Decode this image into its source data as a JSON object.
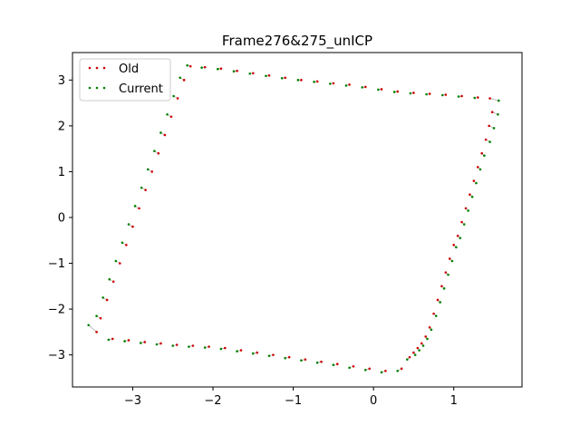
{
  "chart_data": {
    "type": "scatter",
    "title": "Frame276&275_unICP",
    "xlabel": "",
    "ylabel": "",
    "xlim": [
      -3.75,
      1.85
    ],
    "ylim": [
      -3.7,
      3.6
    ],
    "xticks": [
      -3,
      -2,
      -1,
      0,
      1
    ],
    "xtick_labels": [
      "−3",
      "−2",
      "−1",
      "0",
      "1"
    ],
    "yticks": [
      -3,
      -2,
      -1,
      0,
      1,
      2,
      3
    ],
    "ytick_labels": [
      "−3",
      "−2",
      "−1",
      "0",
      "1",
      "2",
      "3"
    ],
    "grid": false,
    "legend_position": "upper-left",
    "series": [
      {
        "name": "Old",
        "color": "#cc0000",
        "x": [
          -2.28,
          -2.1,
          -1.9,
          -1.7,
          -1.5,
          -1.3,
          -1.1,
          -0.9,
          -0.7,
          -0.5,
          -0.3,
          -0.1,
          0.1,
          0.3,
          0.5,
          0.7,
          0.9,
          1.1,
          1.3,
          1.45,
          1.48,
          1.44,
          1.4,
          1.35,
          1.3,
          1.25,
          1.2,
          1.15,
          1.1,
          1.05,
          1.0,
          0.95,
          0.9,
          0.85,
          0.8,
          0.75,
          0.7,
          0.65,
          0.6,
          0.55,
          0.5,
          0.45,
          0.35,
          0.15,
          -0.05,
          -0.25,
          -0.45,
          -0.65,
          -0.85,
          -1.05,
          -1.25,
          -1.45,
          -1.65,
          -1.85,
          -2.05,
          -2.25,
          -2.45,
          -2.65,
          -2.85,
          -3.05,
          -3.25,
          -3.45,
          -3.4,
          -3.32,
          -3.24,
          -3.16,
          -3.08,
          -3.0,
          -2.92,
          -2.84,
          -2.76,
          -2.68,
          -2.6,
          -2.52,
          -2.44,
          -2.36
        ],
        "y": [
          3.3,
          3.28,
          3.25,
          3.2,
          3.15,
          3.1,
          3.05,
          3.0,
          2.97,
          2.93,
          2.9,
          2.85,
          2.8,
          2.75,
          2.72,
          2.7,
          2.68,
          2.65,
          2.62,
          2.6,
          2.3,
          2.0,
          1.7,
          1.4,
          1.1,
          0.8,
          0.5,
          0.2,
          -0.1,
          -0.4,
          -0.6,
          -0.9,
          -1.2,
          -1.5,
          -1.8,
          -2.1,
          -2.4,
          -2.6,
          -2.75,
          -2.85,
          -2.95,
          -3.05,
          -3.3,
          -3.35,
          -3.3,
          -3.25,
          -3.2,
          -3.15,
          -3.1,
          -3.05,
          -3.0,
          -2.95,
          -2.9,
          -2.85,
          -2.82,
          -2.8,
          -2.78,
          -2.75,
          -2.72,
          -2.68,
          -2.65,
          -2.5,
          -2.2,
          -1.8,
          -1.4,
          -1.0,
          -0.6,
          -0.2,
          0.2,
          0.6,
          1.0,
          1.4,
          1.8,
          2.2,
          2.6,
          3.0
        ]
      },
      {
        "name": "Current",
        "color": "#008000",
        "x": [
          -2.32,
          -2.14,
          -1.94,
          -1.74,
          -1.54,
          -1.34,
          -1.14,
          -0.94,
          -0.74,
          -0.54,
          -0.34,
          -0.14,
          0.06,
          0.26,
          0.46,
          0.66,
          0.86,
          1.06,
          1.26,
          1.56,
          1.55,
          1.5,
          1.45,
          1.38,
          1.33,
          1.28,
          1.23,
          1.18,
          1.13,
          1.08,
          1.03,
          0.98,
          0.93,
          0.88,
          0.83,
          0.78,
          0.72,
          0.67,
          0.62,
          0.57,
          0.52,
          0.42,
          0.3,
          0.1,
          -0.1,
          -0.3,
          -0.5,
          -0.7,
          -0.9,
          -1.1,
          -1.3,
          -1.5,
          -1.7,
          -1.9,
          -2.1,
          -2.3,
          -2.5,
          -2.7,
          -2.9,
          -3.1,
          -3.3,
          -3.55,
          -3.45,
          -3.37,
          -3.29,
          -3.21,
          -3.13,
          -3.05,
          -2.97,
          -2.89,
          -2.81,
          -2.73,
          -2.65,
          -2.57,
          -2.49,
          -2.41
        ],
        "y": [
          3.32,
          3.27,
          3.24,
          3.19,
          3.14,
          3.09,
          3.04,
          3.0,
          2.96,
          2.92,
          2.88,
          2.84,
          2.79,
          2.74,
          2.71,
          2.69,
          2.67,
          2.64,
          2.61,
          2.55,
          2.25,
          1.95,
          1.65,
          1.35,
          1.05,
          0.75,
          0.45,
          0.15,
          -0.15,
          -0.45,
          -0.65,
          -0.95,
          -1.25,
          -1.55,
          -1.85,
          -2.15,
          -2.45,
          -2.65,
          -2.8,
          -2.9,
          -3.0,
          -3.1,
          -3.35,
          -3.38,
          -3.33,
          -3.28,
          -3.22,
          -3.17,
          -3.12,
          -3.07,
          -3.02,
          -2.97,
          -2.92,
          -2.87,
          -2.84,
          -2.82,
          -2.8,
          -2.77,
          -2.74,
          -2.7,
          -2.67,
          -2.35,
          -2.15,
          -1.75,
          -1.35,
          -0.95,
          -0.55,
          -0.15,
          0.25,
          0.65,
          1.05,
          1.45,
          1.85,
          2.25,
          2.65,
          3.05
        ]
      }
    ]
  }
}
